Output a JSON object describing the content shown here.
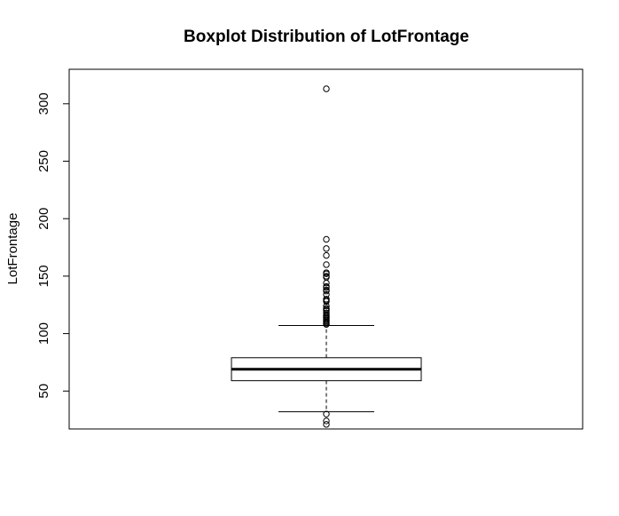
{
  "chart_data": {
    "type": "boxplot",
    "title": "Boxplot Distribution of LotFrontage",
    "xlabel": "",
    "ylabel": "LotFrontage",
    "ylim": [
      17,
      330
    ],
    "yticks": [
      50,
      100,
      150,
      200,
      250,
      300
    ],
    "grid": false,
    "box": {
      "whisker_low": 32,
      "q1": 59,
      "median": 69,
      "q3": 79,
      "whisker_high": 107
    },
    "outliers": [
      21,
      24,
      30,
      108,
      109,
      110,
      111,
      112,
      113,
      114,
      115,
      116,
      118,
      120,
      121,
      122,
      124,
      128,
      129,
      130,
      134,
      137,
      138,
      140,
      141,
      144,
      149,
      150,
      152,
      153,
      160,
      168,
      174,
      182,
      313
    ],
    "colors": {
      "ink": "#000000",
      "background": "#ffffff"
    }
  }
}
